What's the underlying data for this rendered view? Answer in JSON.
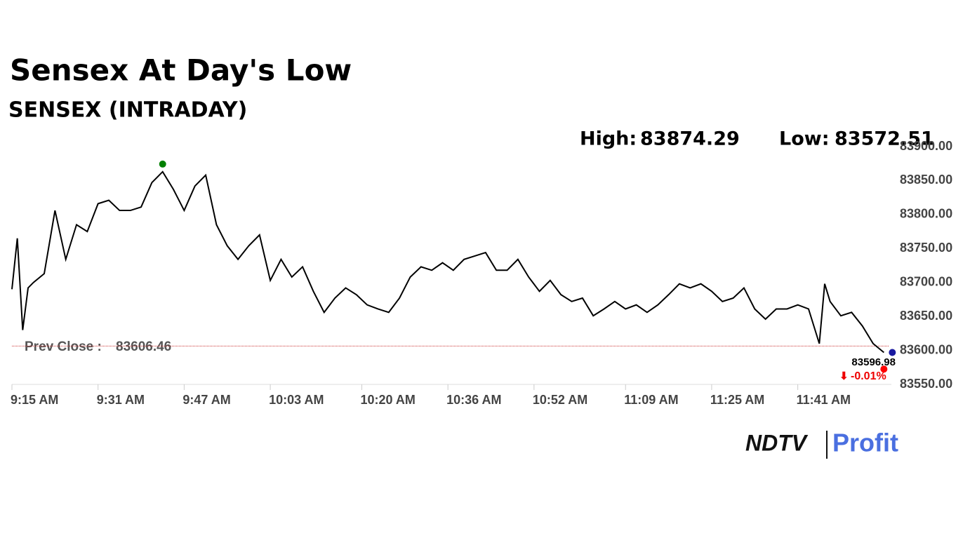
{
  "chart_data": {
    "type": "line",
    "title": "Sensex At Day's Low",
    "subtitle": "SENSEX (INTRADAY)",
    "high": {
      "label": "High:",
      "value": 83874.29,
      "x": 28
    },
    "low": {
      "label": "Low:",
      "value": 83572.51,
      "x": 162
    },
    "prev_close": {
      "label": "Prev Close :",
      "value": 83606.46
    },
    "last": {
      "value": 83596.98,
      "x": 162
    },
    "change": {
      "arrow": "⬇",
      "value": -0.01,
      "label": "-0.01%"
    },
    "color": "#000000",
    "x": [
      0,
      1,
      2,
      3,
      4,
      6,
      8,
      10,
      12,
      14,
      16,
      18,
      20,
      22,
      24,
      26,
      28,
      30,
      32,
      34,
      36,
      38,
      40,
      42,
      44,
      46,
      48,
      50,
      52,
      54,
      56,
      58,
      60,
      62,
      64,
      66,
      68,
      70,
      72,
      74,
      76,
      78,
      80,
      82,
      84,
      86,
      88,
      90,
      92,
      94,
      96,
      98,
      100,
      102,
      104,
      106,
      108,
      110,
      112,
      114,
      116,
      118,
      120,
      122,
      124,
      126,
      128,
      130,
      132,
      134,
      136,
      138,
      140,
      142,
      144,
      146,
      148,
      150,
      151,
      152,
      154,
      156,
      158,
      160,
      162
    ],
    "values": [
      83690,
      83765,
      83630,
      83692,
      83700,
      83713,
      83806,
      83734,
      83785,
      83775,
      83816,
      83821,
      83806,
      83806,
      83811,
      83847,
      83863,
      83837,
      83806,
      83842,
      83858,
      83785,
      83754,
      83734,
      83754,
      83770,
      83703,
      83734,
      83708,
      83723,
      83687,
      83656,
      83677,
      83692,
      83682,
      83667,
      83661,
      83656,
      83677,
      83708,
      83723,
      83718,
      83729,
      83718,
      83734,
      83739,
      83744,
      83718,
      83718,
      83734,
      83708,
      83687,
      83703,
      83682,
      83672,
      83677,
      83651,
      83661,
      83672,
      83661,
      83667,
      83656,
      83667,
      83682,
      83698,
      83692,
      83698,
      83687,
      83672,
      83677,
      83692,
      83661,
      83646,
      83661,
      83661,
      83667,
      83661,
      83610,
      83698,
      83672,
      83651,
      83656,
      83636,
      83610,
      83596.98
    ],
    "xlim": [
      0,
      163
    ],
    "xticks": [
      {
        "value": 0,
        "label": "9:15 AM"
      },
      {
        "value": 16,
        "label": "9:31 AM"
      },
      {
        "value": 32,
        "label": "9:47 AM"
      },
      {
        "value": 48,
        "label": "10:03 AM"
      },
      {
        "value": 65,
        "label": "10:20 AM"
      },
      {
        "value": 81,
        "label": "10:36 AM"
      },
      {
        "value": 97,
        "label": "10:52 AM"
      },
      {
        "value": 114,
        "label": "11:09 AM"
      },
      {
        "value": 130,
        "label": "11:25 AM"
      },
      {
        "value": 146,
        "label": "11:41 AM"
      }
    ],
    "ylim": [
      83550,
      83900
    ],
    "yticks": [
      {
        "value": 83550,
        "label": "83550.00"
      },
      {
        "value": 83600,
        "label": "83600.00"
      },
      {
        "value": 83650,
        "label": "83650.00"
      },
      {
        "value": 83700,
        "label": "83700.00"
      },
      {
        "value": 83750,
        "label": "83750.00"
      },
      {
        "value": 83800,
        "label": "83800.00"
      },
      {
        "value": 83850,
        "label": "83850.00"
      },
      {
        "value": 83900,
        "label": "83900.00"
      }
    ]
  },
  "logo": {
    "brand": "NDTV",
    "product": "Profit"
  }
}
